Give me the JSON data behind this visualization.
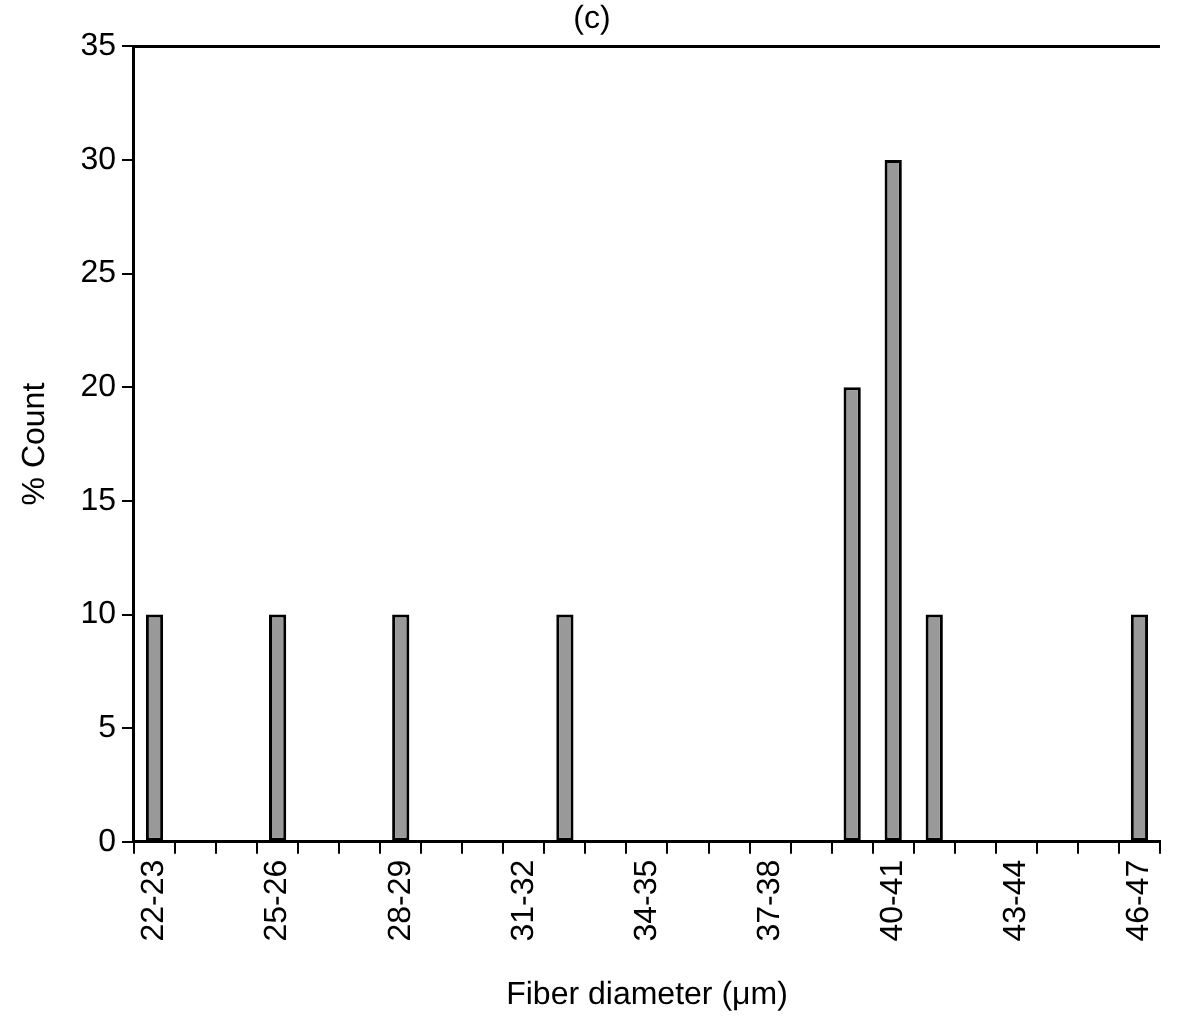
{
  "chart_data": {
    "type": "bar",
    "title": "(c)",
    "xlabel": "Fiber diameter (μm)",
    "ylabel": "% Count",
    "categories": [
      "22-23",
      null,
      null,
      "25-26",
      null,
      null,
      "28-29",
      null,
      null,
      "31-32",
      null,
      null,
      "34-35",
      null,
      null,
      "37-38",
      null,
      null,
      "40-41",
      null,
      null,
      "43-44",
      null,
      null,
      "46-47"
    ],
    "values": [
      10,
      0,
      0,
      10,
      0,
      0,
      10,
      0,
      0,
      0,
      10,
      0,
      0,
      0,
      0,
      0,
      0,
      20,
      30,
      10,
      0,
      0,
      0,
      0,
      10
    ],
    "color": "#999999",
    "ylim": [
      0,
      35
    ],
    "yticks": [
      0,
      5,
      10,
      15,
      20,
      25,
      30,
      35
    ],
    "grid": false,
    "legend": false
  }
}
